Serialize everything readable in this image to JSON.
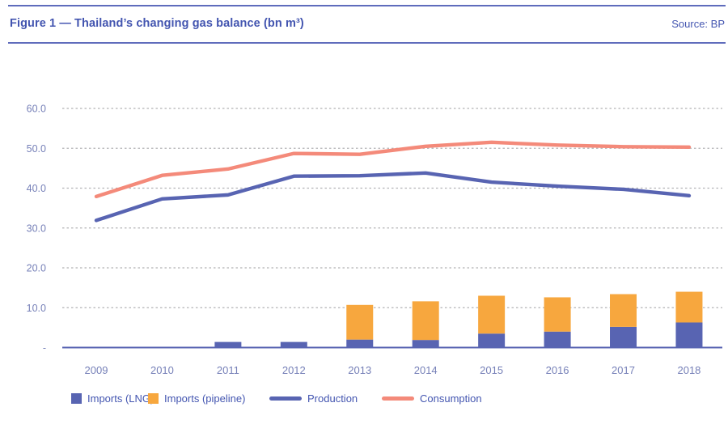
{
  "header": {
    "title": "Figure 1 — Thailand’s changing gas balance (bn m³)",
    "source": "Source: BP"
  },
  "colors": {
    "accent_text": "#4355b0",
    "tick_text": "#7680b8",
    "rule": "#5f6cbc",
    "grid": "#b2b2b5",
    "axis": "#5864b2",
    "lng": "#5864b2",
    "pipeline": "#f7a73e",
    "production": "#5864b2",
    "consumption": "#f48a7a"
  },
  "chart_data": {
    "type": "combo: stacked bars + lines",
    "title": "Thailand’s changing gas balance (bn m³)",
    "xlabel": "",
    "ylabel": "",
    "categories": [
      "2009",
      "2010",
      "2011",
      "2012",
      "2013",
      "2014",
      "2015",
      "2016",
      "2017",
      "2018"
    ],
    "series": [
      {
        "name": "Imports (LNG)",
        "type": "bar",
        "stack": "imports",
        "color_key": "lng",
        "values": [
          0,
          0,
          1.4,
          1.4,
          2.0,
          1.9,
          3.5,
          4.0,
          5.2,
          6.3
        ]
      },
      {
        "name": "Imports (pipeline)",
        "type": "bar",
        "stack": "imports",
        "color_key": "pipeline",
        "values": [
          0,
          0,
          0,
          0,
          8.7,
          9.7,
          9.5,
          8.6,
          8.2,
          7.7
        ]
      },
      {
        "name": "Production",
        "type": "line",
        "color_key": "production",
        "values": [
          31.9,
          37.3,
          38.3,
          43.0,
          43.1,
          43.8,
          41.5,
          40.5,
          39.7,
          38.1
        ]
      },
      {
        "name": "Consumption",
        "type": "line",
        "color_key": "consumption",
        "values": [
          37.9,
          43.2,
          44.8,
          48.7,
          48.5,
          50.5,
          51.5,
          50.8,
          50.4,
          50.3
        ]
      }
    ],
    "ylim": [
      0,
      60
    ],
    "ytick_step": 10,
    "ytick_labels": [
      "-",
      "10.0",
      "20.0",
      "30.0",
      "40.0",
      "50.0",
      "60.0"
    ],
    "grid": "horizontal dashed",
    "legend_position": "bottom"
  },
  "legend": {
    "items": [
      {
        "label": "Imports (LNG)",
        "swatch": "square",
        "color_key": "lng"
      },
      {
        "label": "Imports (pipeline)",
        "swatch": "square",
        "color_key": "pipeline"
      },
      {
        "label": "Production",
        "swatch": "line",
        "color_key": "production"
      },
      {
        "label": "Consumption",
        "swatch": "line",
        "color_key": "consumption"
      }
    ]
  }
}
